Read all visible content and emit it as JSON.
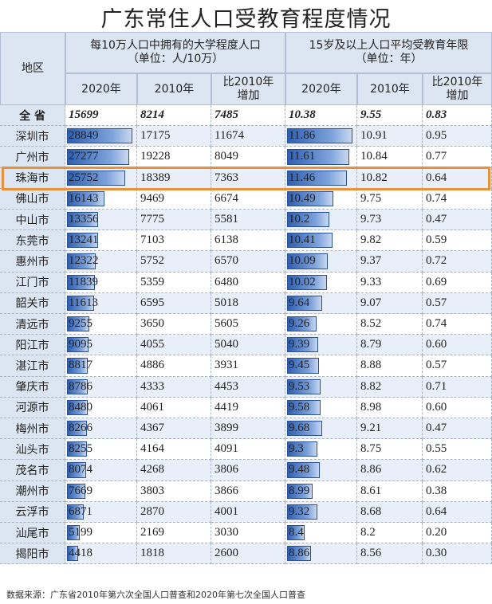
{
  "title": "广东常住人口受教育程度情况",
  "header": {
    "region": "地区",
    "groups": [
      {
        "lines": [
          "每10万人口中拥有的大学程度人口",
          "（单位：人/10万）"
        ]
      },
      {
        "lines": [
          "15岁及以上人口平均受教育年限",
          "（单位：年）"
        ]
      }
    ],
    "sub": [
      {
        "lines": [
          "2020年"
        ]
      },
      {
        "lines": [
          "2010年"
        ]
      },
      {
        "lines": [
          "比2010年",
          "增加"
        ]
      },
      {
        "lines": [
          "2020年"
        ]
      },
      {
        "lines": [
          "2010年"
        ]
      },
      {
        "lines": [
          "比2010年",
          "增加"
        ]
      }
    ]
  },
  "rows": [
    [
      "全 省",
      "15699",
      "8214",
      "7485",
      "10.38",
      "9.55",
      "0.83"
    ],
    [
      "深圳市",
      "28849",
      "17175",
      "11674",
      "11.86",
      "10.91",
      "0.95"
    ],
    [
      "广州市",
      "27277",
      "19228",
      "8049",
      "11.61",
      "10.84",
      "0.77"
    ],
    [
      "珠海市",
      "25752",
      "18389",
      "7363",
      "11.46",
      "10.82",
      "0.64"
    ],
    [
      "佛山市",
      "16143",
      "9469",
      "6674",
      "10.49",
      "9.75",
      "0.74"
    ],
    [
      "中山市",
      "13356",
      "7775",
      "5581",
      "10.2",
      "9.73",
      "0.47"
    ],
    [
      "东莞市",
      "13241",
      "7103",
      "6138",
      "10.41",
      "9.82",
      "0.59"
    ],
    [
      "惠州市",
      "12322",
      "5752",
      "6570",
      "10.09",
      "9.37",
      "0.72"
    ],
    [
      "江门市",
      "11839",
      "5359",
      "6480",
      "10.02",
      "9.33",
      "0.69"
    ],
    [
      "韶关市",
      "11613",
      "6595",
      "5018",
      "9.64",
      "9.07",
      "0.57"
    ],
    [
      "清远市",
      "9255",
      "3650",
      "5605",
      "9.26",
      "8.52",
      "0.74"
    ],
    [
      "阳江市",
      "9095",
      "4055",
      "5040",
      "9.39",
      "8.79",
      "0.60"
    ],
    [
      "湛江市",
      "8817",
      "4886",
      "3931",
      "9.45",
      "8.88",
      "0.57"
    ],
    [
      "肇庆市",
      "8786",
      "4333",
      "4453",
      "9.53",
      "8.82",
      "0.71"
    ],
    [
      "河源市",
      "8480",
      "4061",
      "4419",
      "9.58",
      "8.98",
      "0.60"
    ],
    [
      "梅州市",
      "8266",
      "4367",
      "3899",
      "9.68",
      "9.21",
      "0.47"
    ],
    [
      "汕头市",
      "8255",
      "4164",
      "4091",
      "9.3",
      "8.75",
      "0.55"
    ],
    [
      "茂名市",
      "8074",
      "4268",
      "3806",
      "9.48",
      "8.86",
      "0.62"
    ],
    [
      "潮州市",
      "7669",
      "3803",
      "3866",
      "8.99",
      "8.61",
      "0.38"
    ],
    [
      "云浮市",
      "6871",
      "2870",
      "4001",
      "9.32",
      "8.68",
      "0.64"
    ],
    [
      "汕尾市",
      "5199",
      "2169",
      "3030",
      "8.4",
      "8.2",
      "0.20"
    ],
    [
      "揭阳市",
      "4418",
      "1818",
      "2600",
      "8.86",
      "8.56",
      "0.30"
    ]
  ],
  "highlight_row": 3,
  "source": "数据来源：广东省2010年第六次全国人口普查和2020年第七次全国人口普查"
}
